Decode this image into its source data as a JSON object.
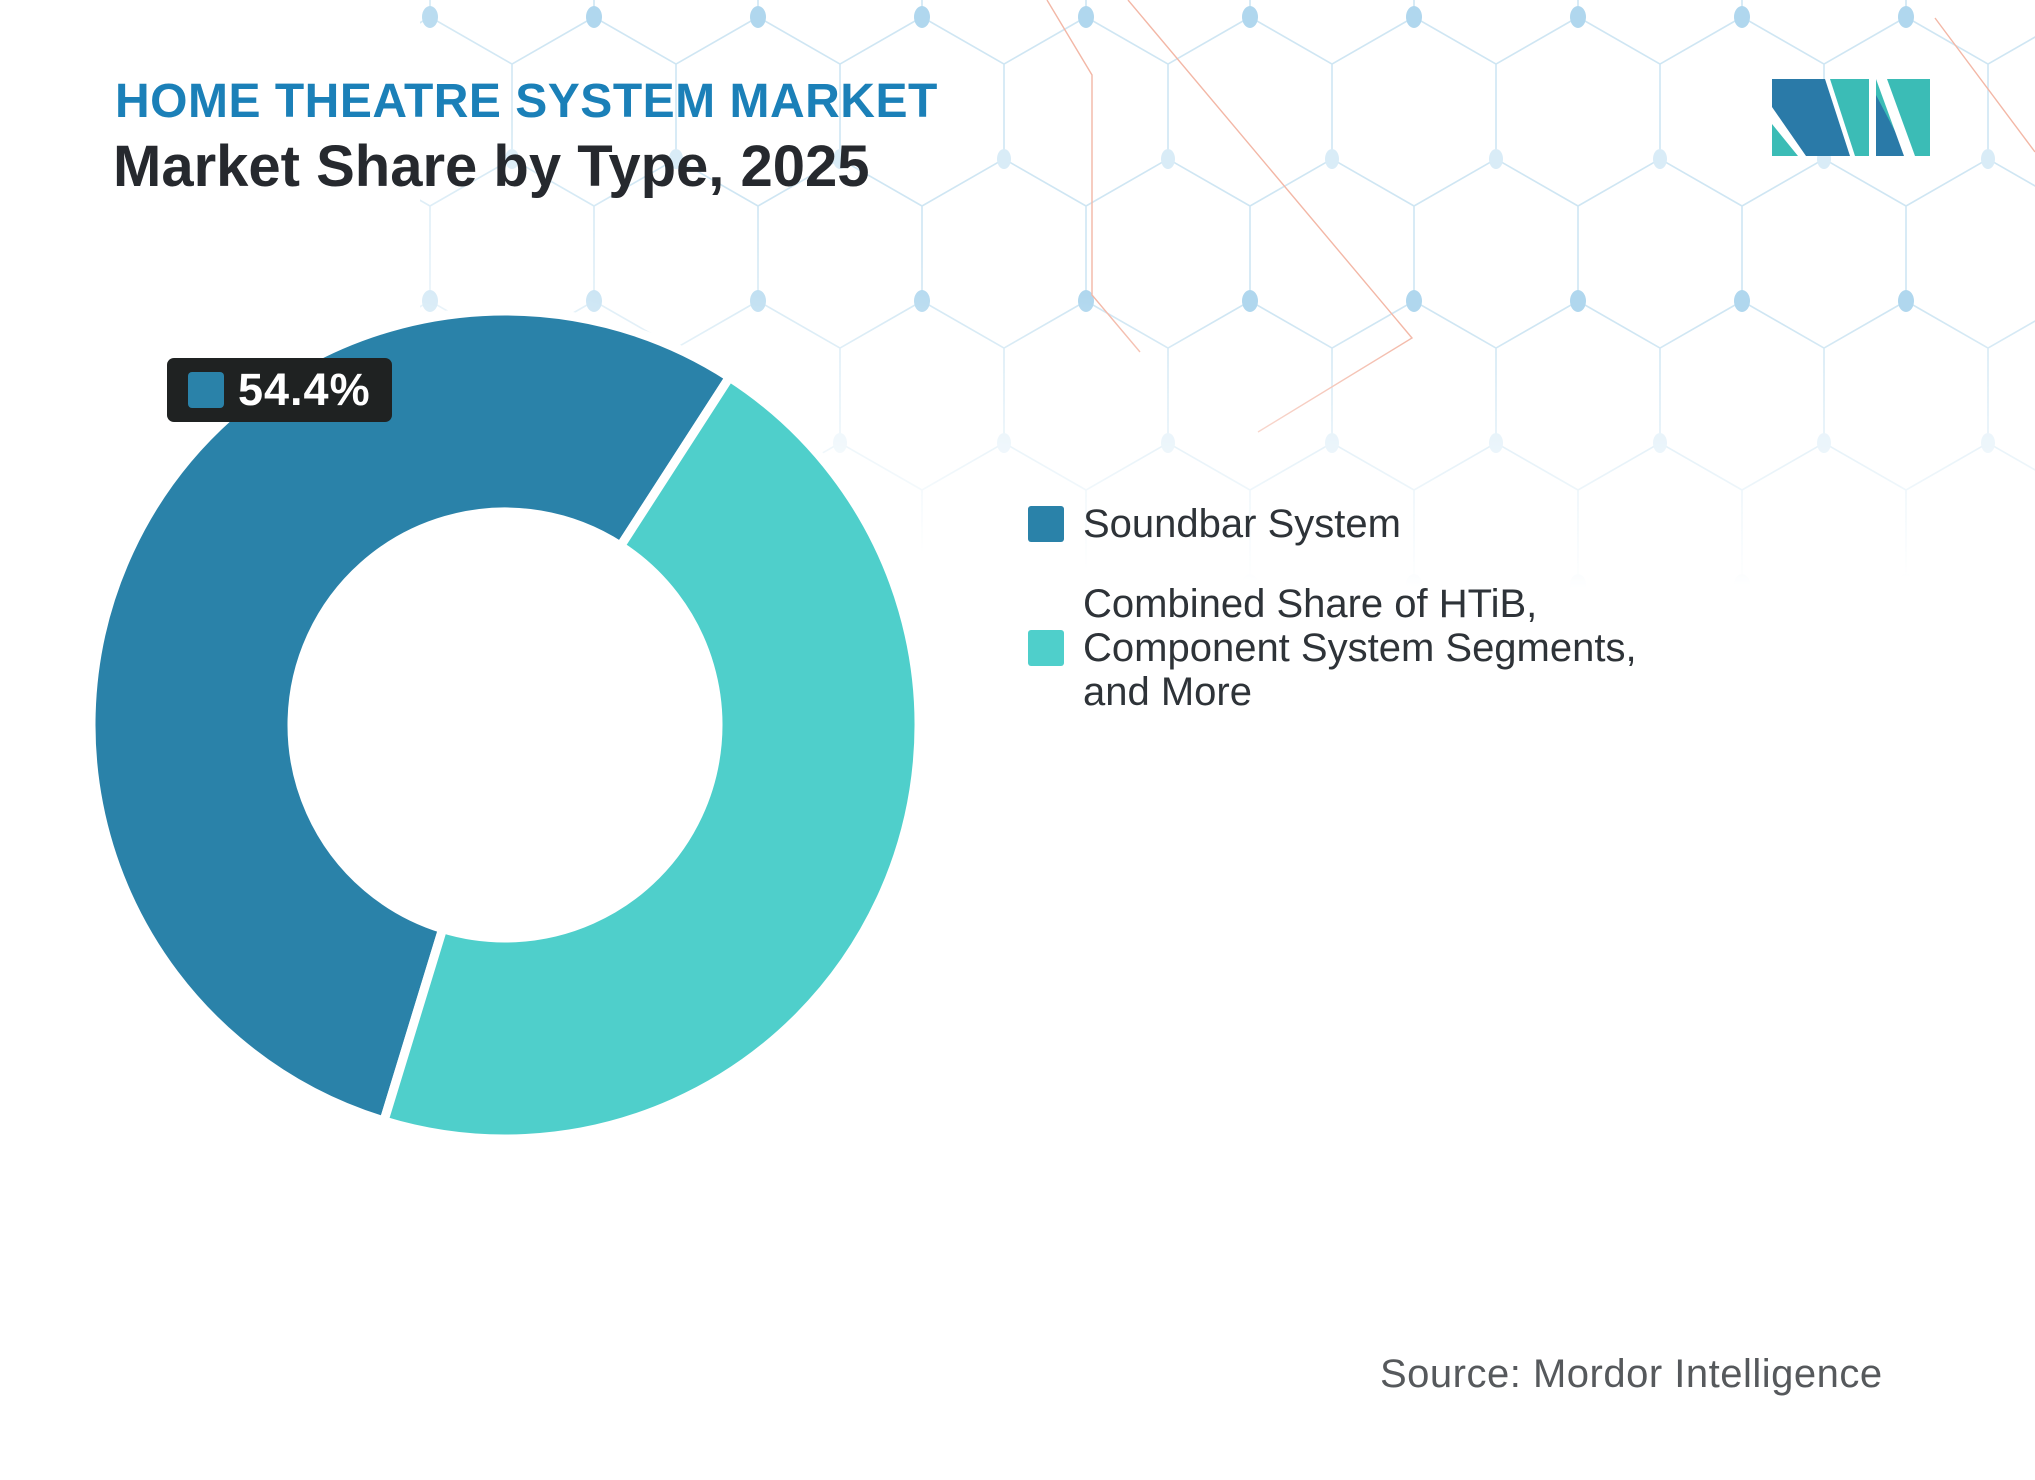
{
  "header": {
    "kicker": "HOME THEATRE SYSTEM MARKET",
    "title": "Market Share by Type, 2025"
  },
  "colors": {
    "segment_blue": "#2A82A9",
    "segment_teal": "#4FCFCB",
    "kicker_blue": "#1B80B8",
    "title_dark": "#26292E",
    "label_box_bg": "#1F2222",
    "legend_text": "#2E3338",
    "source_text": "#56595C",
    "mesh_line": "#CFE6F3",
    "mesh_dot": "#B0D7EE",
    "mesh_accent_line": "#F3B7A6"
  },
  "chart_data": {
    "type": "pie",
    "donut": true,
    "title": "Market Share by Type, 2025",
    "unit": "%",
    "rotation_deg": 197,
    "legend_position": "right",
    "segments": [
      {
        "label": "Soundbar System",
        "value": 54.4,
        "color": "#2A82A9"
      },
      {
        "label": "Combined Share of HTiB, Component System Segments, and More",
        "value": 45.6,
        "color": "#4FCFCB"
      }
    ],
    "data_label": {
      "text": "54.4%",
      "applies_to": "Soundbar System"
    }
  },
  "label": {
    "value": "54.4%"
  },
  "legend": {
    "items": [
      {
        "color": "#2A82A9",
        "lines": [
          "Soundbar System"
        ]
      },
      {
        "color": "#4FCFCB",
        "lines": [
          "Combined Share of HTiB,",
          "Component System Segments,",
          "and More"
        ]
      }
    ]
  },
  "footer": {
    "source": "Source: Mordor Intelligence"
  },
  "logo": {
    "alt": "Mordor Intelligence logo",
    "blue": "#2A7AA8",
    "teal": "#3BBCB6"
  }
}
